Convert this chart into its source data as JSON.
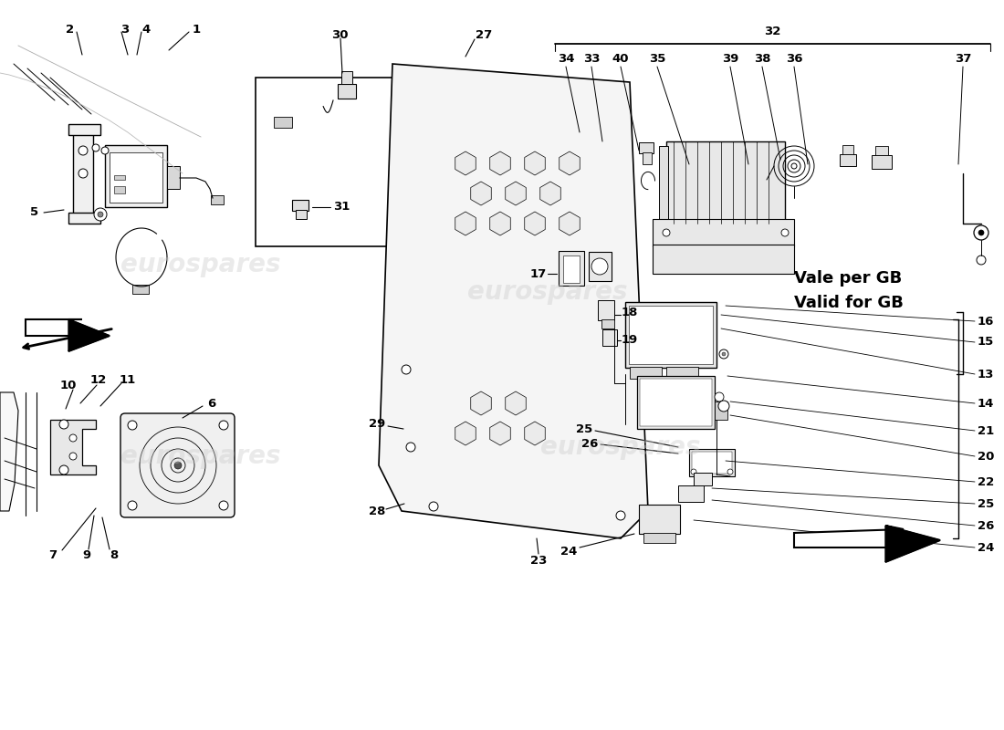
{
  "background_color": "#ffffff",
  "line_color": "#000000",
  "text_color": "#000000",
  "watermark_color": "#cccccc",
  "label_fontsize": 9.5,
  "annotation_fontsize": 13,
  "watermark_text": "eurospares",
  "annotation": "Vale per GB\nValid for GB",
  "part_numbers_right": [
    "16",
    "15",
    "13",
    "14",
    "21",
    "20",
    "22",
    "25",
    "26",
    "24"
  ],
  "part_numbers_top_right": [
    "34",
    "33",
    "40",
    "35",
    "39",
    "38",
    "36",
    "37"
  ],
  "part_number_32": "32"
}
